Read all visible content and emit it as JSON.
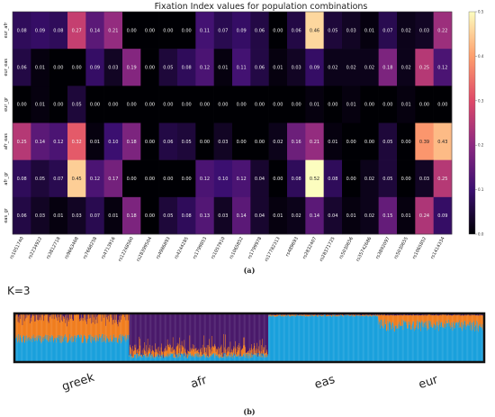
{
  "heatmap": {
    "title": "Fixation Index values for population combinations",
    "panel_label": "(a)",
    "rows": [
      "eur_afr",
      "eur_eas",
      "eur_gr",
      "afr_eas",
      "afr_gr",
      "eas_gr"
    ],
    "columns": [
      "rs1051740",
      "rs2234922",
      "rs3812718",
      "rs9663468",
      "rs7668258",
      "rs4713916",
      "rs12248560",
      "rs28399504",
      "rs4986893",
      "rs4244285",
      "rs1799853",
      "rs1057910",
      "rs1065852",
      "rs1799978",
      "rs17782313",
      "rs489693",
      "rs2832407",
      "rs28371725",
      "rs5030656",
      "rs35742686",
      "rs3892097",
      "rs5030655",
      "rs1065852",
      "rs1414334"
    ],
    "colorbar_ticks": [
      "0.5",
      "0.4",
      "0.3",
      "0.2",
      "0.1",
      "0.0"
    ],
    "colorbar_range": [
      0,
      0.5
    ],
    "colors": {
      "low": "#000004",
      "mid1": "#3b0f70",
      "mid2": "#8c2981",
      "mid3": "#de4968",
      "mid4": "#fe9f6d",
      "high": "#fcfdbf"
    },
    "values": [
      [
        0.08,
        0.09,
        0.08,
        0.27,
        0.14,
        0.21,
        -0.0,
        0.0,
        0.0,
        0.0,
        0.11,
        0.07,
        0.09,
        0.06,
        0.0,
        0.06,
        0.46,
        0.05,
        0.03,
        0.01,
        0.07,
        0.02,
        0.03,
        0.22
      ],
      [
        0.06,
        0.01,
        0.0,
        0.0,
        0.09,
        0.03,
        0.19,
        -0.0,
        0.05,
        0.08,
        0.12,
        0.01,
        0.11,
        0.06,
        0.01,
        0.03,
        0.09,
        0.02,
        0.02,
        0.02,
        0.18,
        0.02,
        0.25,
        0.12
      ],
      [
        -0.0,
        0.01,
        -0.0,
        0.05,
        -0.0,
        -0.0,
        -0.0,
        0.0,
        -0.0,
        -0.0,
        -0.0,
        0.0,
        0.0,
        -0.0,
        -0.0,
        0.0,
        0.01,
        0.0,
        0.01,
        -0.0,
        0.0,
        0.01,
        -0.0,
        0.0
      ],
      [
        0.25,
        0.14,
        0.12,
        0.32,
        0.01,
        0.1,
        0.18,
        0.0,
        0.06,
        0.05,
        0.0,
        0.03,
        -0.0,
        -0.0,
        0.02,
        0.16,
        0.21,
        0.01,
        -0.0,
        0.0,
        0.05,
        -0.0,
        0.39,
        0.43
      ],
      [
        0.08,
        0.05,
        0.07,
        0.45,
        0.12,
        0.17,
        -0.0,
        -0.0,
        -0.0,
        0.0,
        0.12,
        0.1,
        0.12,
        0.04,
        0.0,
        0.08,
        0.52,
        0.08,
        0.0,
        0.02,
        0.05,
        0.0,
        0.03,
        0.25
      ],
      [
        0.06,
        0.03,
        0.01,
        0.03,
        0.07,
        0.01,
        0.18,
        0.0,
        0.05,
        0.08,
        0.13,
        0.03,
        0.14,
        0.04,
        0.01,
        0.02,
        0.14,
        0.04,
        0.01,
        0.02,
        0.15,
        0.01,
        0.24,
        0.09
      ]
    ]
  },
  "admixture": {
    "k_label": "K=3",
    "panel_label": "(b)",
    "populations": [
      "greek",
      "afr",
      "eas",
      "eur"
    ],
    "colors": {
      "cluster1": "#f07d1e",
      "cluster2": "#4a1a6b",
      "cluster3": "#1aa0dc"
    }
  }
}
